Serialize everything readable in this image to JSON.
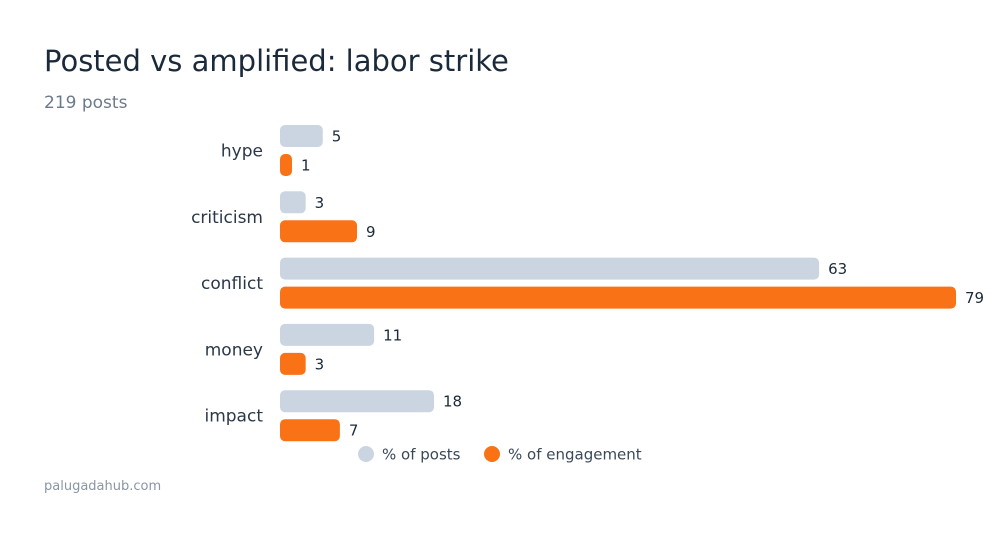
{
  "title": "Posted vs amplified: labor strike",
  "subtitle": "219 posts",
  "source": "palugadahub.com",
  "colors": {
    "posts": "#cbd5e1",
    "engagement": "#f97316"
  },
  "chart_data": {
    "type": "bar",
    "orientation": "horizontal",
    "categories": [
      "hype",
      "criticism",
      "conflict",
      "money",
      "impact"
    ],
    "series": [
      {
        "name": "% of posts",
        "values": [
          5,
          3,
          63,
          11,
          18
        ]
      },
      {
        "name": "% of engagement",
        "values": [
          1,
          9,
          79,
          3,
          7
        ]
      }
    ],
    "xlim": [
      0,
      79
    ],
    "grid": false,
    "legend": "bottom"
  }
}
